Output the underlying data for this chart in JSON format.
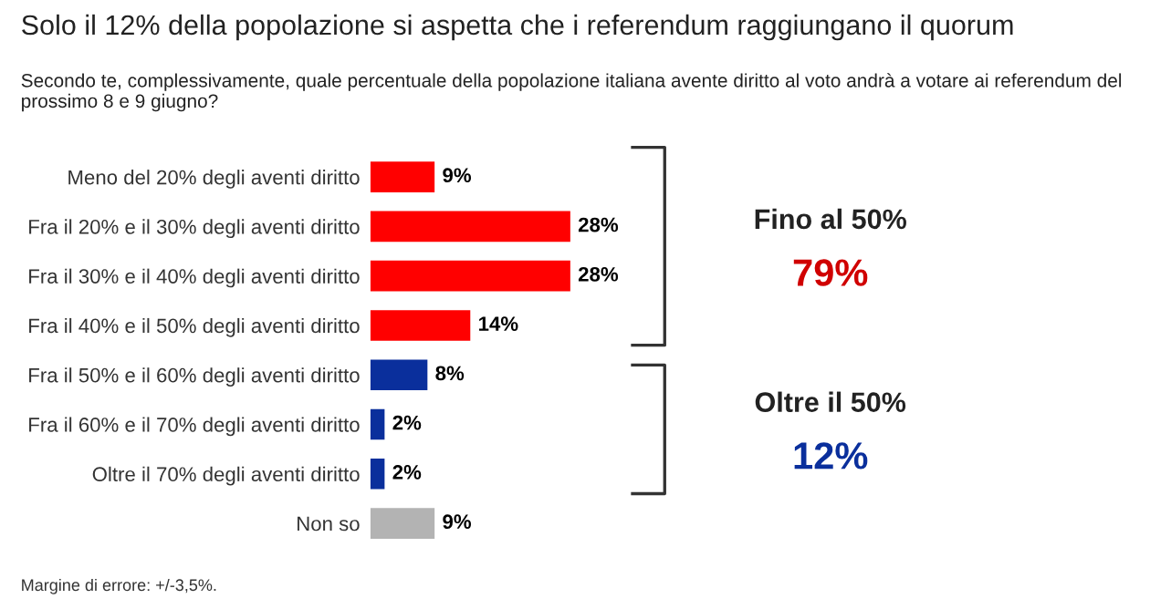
{
  "chart_data": {
    "type": "bar",
    "orientation": "horizontal",
    "title": "Solo il 12% della popolazione si aspetta che i referendum raggiungano il quorum",
    "subtitle": "Secondo te, complessivamente, quale percentuale della popolazione italiana avente diritto al voto andrà a votare ai referendum del prossimo 8 e 9 giugno?",
    "categories": [
      "Meno del 20% degli aventi diritto",
      "Fra il 20% e il 30% degli aventi diritto",
      "Fra il 30% e il 40% degli aventi diritto",
      "Fra il 40% e il 50% degli aventi diritto",
      "Fra il 50% e il 60% degli aventi diritto",
      "Fra il 60% e il 70% degli aventi diritto",
      "Oltre il 70% degli aventi diritto",
      "Non so"
    ],
    "values": [
      9,
      28,
      28,
      14,
      8,
      2,
      2,
      9
    ],
    "colors": [
      "#ff0000",
      "#ff0000",
      "#ff0000",
      "#ff0000",
      "#0a2f9c",
      "#0a2f9c",
      "#0a2f9c",
      "#b3b3b3"
    ],
    "data_labels": true,
    "value_labels": [
      "9%",
      "28%",
      "28%",
      "14%",
      "8%",
      "2%",
      "2%",
      "9%"
    ],
    "annotations": [
      "Fino al 50%",
      "79%",
      "Oltre il 50%",
      "12%",
      "Margine di errore: +/-3,5%."
    ],
    "grid": false,
    "legend": false
  }
}
